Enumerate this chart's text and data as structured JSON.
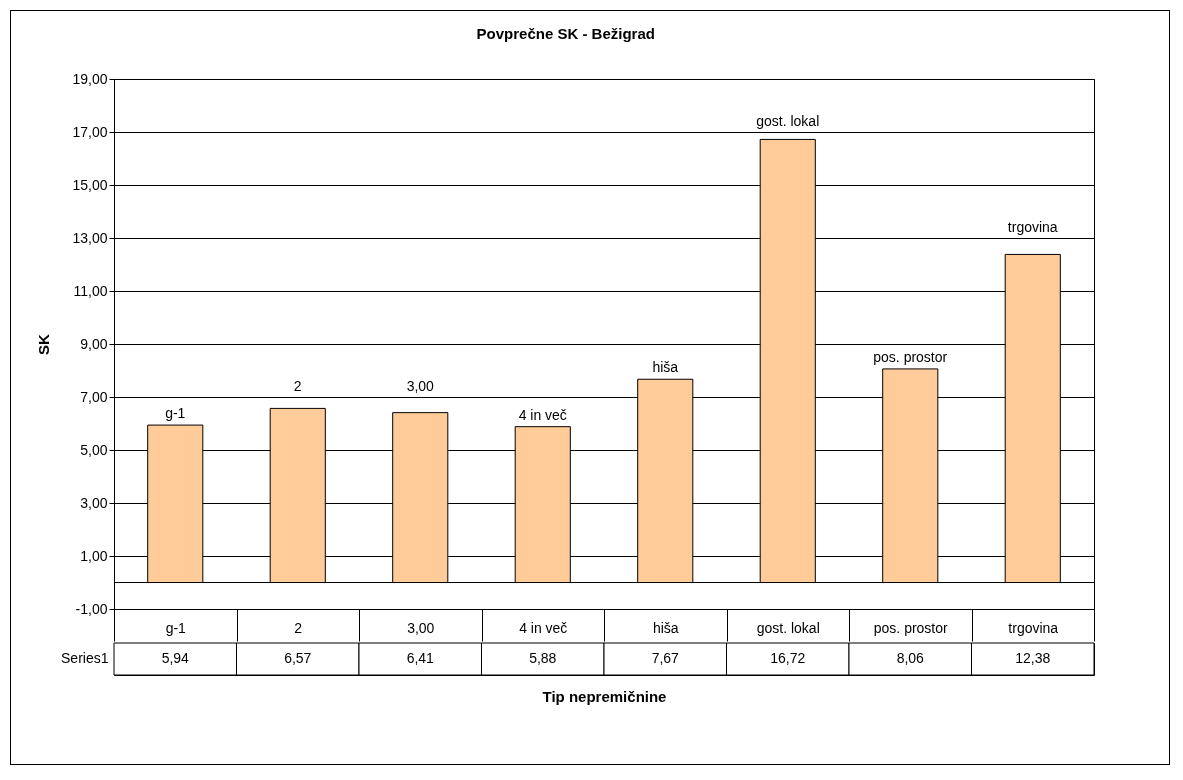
{
  "chart_data": {
    "type": "bar",
    "title": "Povprečne SK - Bežigrad",
    "xlabel": "Tip nepremičnine",
    "ylabel": "SK",
    "categories": [
      "g-1",
      "2",
      "3,00",
      "4 in več",
      "hiša",
      "gost. lokal",
      "pos. prostor",
      "trgovina"
    ],
    "series": [
      {
        "name": "Series1",
        "color": "#ffcc99",
        "values": [
          5.94,
          6.57,
          6.41,
          5.88,
          7.67,
          16.72,
          8.06,
          12.38
        ]
      }
    ],
    "value_labels": [
      "5,94",
      "6,57",
      "6,41",
      "5,88",
      "7,67",
      "16,72",
      "8,06",
      "12,38"
    ],
    "annotations": [
      {
        "text": "g-1",
        "x": "g-1",
        "y": 5.94
      },
      {
        "text": "2",
        "x": "2",
        "y": 6.57
      },
      {
        "text": "3,00",
        "x": "3,00",
        "y": 6.41
      },
      {
        "text": "4 in več",
        "x": "4 in več",
        "y": 5.88
      },
      {
        "text": "hiša",
        "x": "hiša",
        "y": 7.67
      },
      {
        "text": "gost. lokal",
        "x": "gost. lokal",
        "y": 16.72
      },
      {
        "text": "pos. prostor",
        "x": "pos. prostor",
        "y": 8.06
      },
      {
        "text": "trgovina",
        "x": "trgovina",
        "y": 12.38
      }
    ],
    "ylim": [
      -1,
      19
    ],
    "yticks": [
      {
        "value": -1,
        "label": "-1,00"
      },
      {
        "value": 1,
        "label": "1,00"
      },
      {
        "value": 3,
        "label": "3,00"
      },
      {
        "value": 5,
        "label": "5,00"
      },
      {
        "value": 7,
        "label": "7,00"
      },
      {
        "value": 9,
        "label": "9,00"
      },
      {
        "value": 11,
        "label": "11,00"
      },
      {
        "value": 13,
        "label": "13,00"
      },
      {
        "value": 15,
        "label": "15,00"
      },
      {
        "value": 17,
        "label": "17,00"
      },
      {
        "value": 19,
        "label": "19,00"
      }
    ],
    "grid": "y",
    "legend": false
  }
}
